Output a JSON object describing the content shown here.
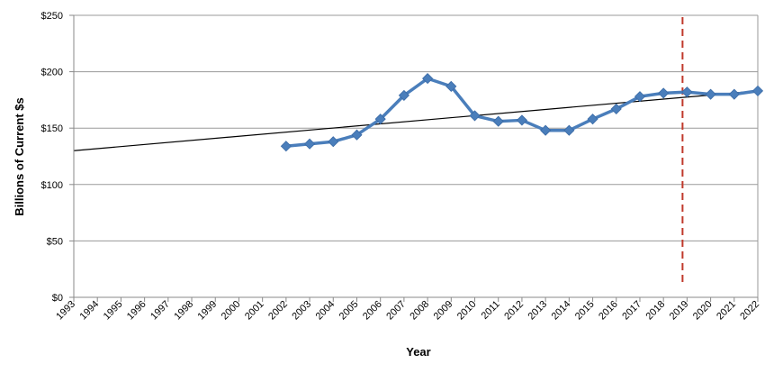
{
  "chart_data": {
    "type": "line",
    "title": "",
    "xlabel": "Year",
    "ylabel": "Billions of Current $s",
    "categories": [
      "1993",
      "1994",
      "1995",
      "1996",
      "1997",
      "1998",
      "1999",
      "2000",
      "2001",
      "2002",
      "2003",
      "2004",
      "2005",
      "2006",
      "2007",
      "2008",
      "2009",
      "2010",
      "2011",
      "2012",
      "2013",
      "2014",
      "2015",
      "2016",
      "2017",
      "2018",
      "2019",
      "2020",
      "2021",
      "2022"
    ],
    "ylim": [
      0,
      250
    ],
    "yticks": [
      0,
      50,
      100,
      150,
      200,
      250
    ],
    "ytick_labels": [
      "$0",
      "$50",
      "$100",
      "$150",
      "$200",
      "$250"
    ],
    "grid": "horizontal",
    "series": [
      {
        "x": [
          "2002",
          "2003",
          "2004",
          "2005",
          "2006",
          "2007",
          "2008",
          "2009",
          "2010",
          "2011",
          "2012",
          "2013",
          "2014",
          "2015",
          "2016",
          "2017",
          "2018",
          "2019",
          "2020",
          "2021",
          "2022"
        ],
        "values": [
          134,
          136,
          138,
          144,
          158,
          179,
          194,
          187,
          161,
          156,
          157,
          148,
          148,
          158,
          167,
          178,
          181,
          182,
          180,
          180,
          183
        ],
        "color": "#4a7ebb",
        "marker": "diamond"
      }
    ],
    "trendline": {
      "start": [
        "1993",
        130
      ],
      "end": [
        "2022",
        183
      ],
      "color": "#000000"
    },
    "reference_line": {
      "x": "2019",
      "color": "#c0392b",
      "style": "dashed"
    }
  }
}
